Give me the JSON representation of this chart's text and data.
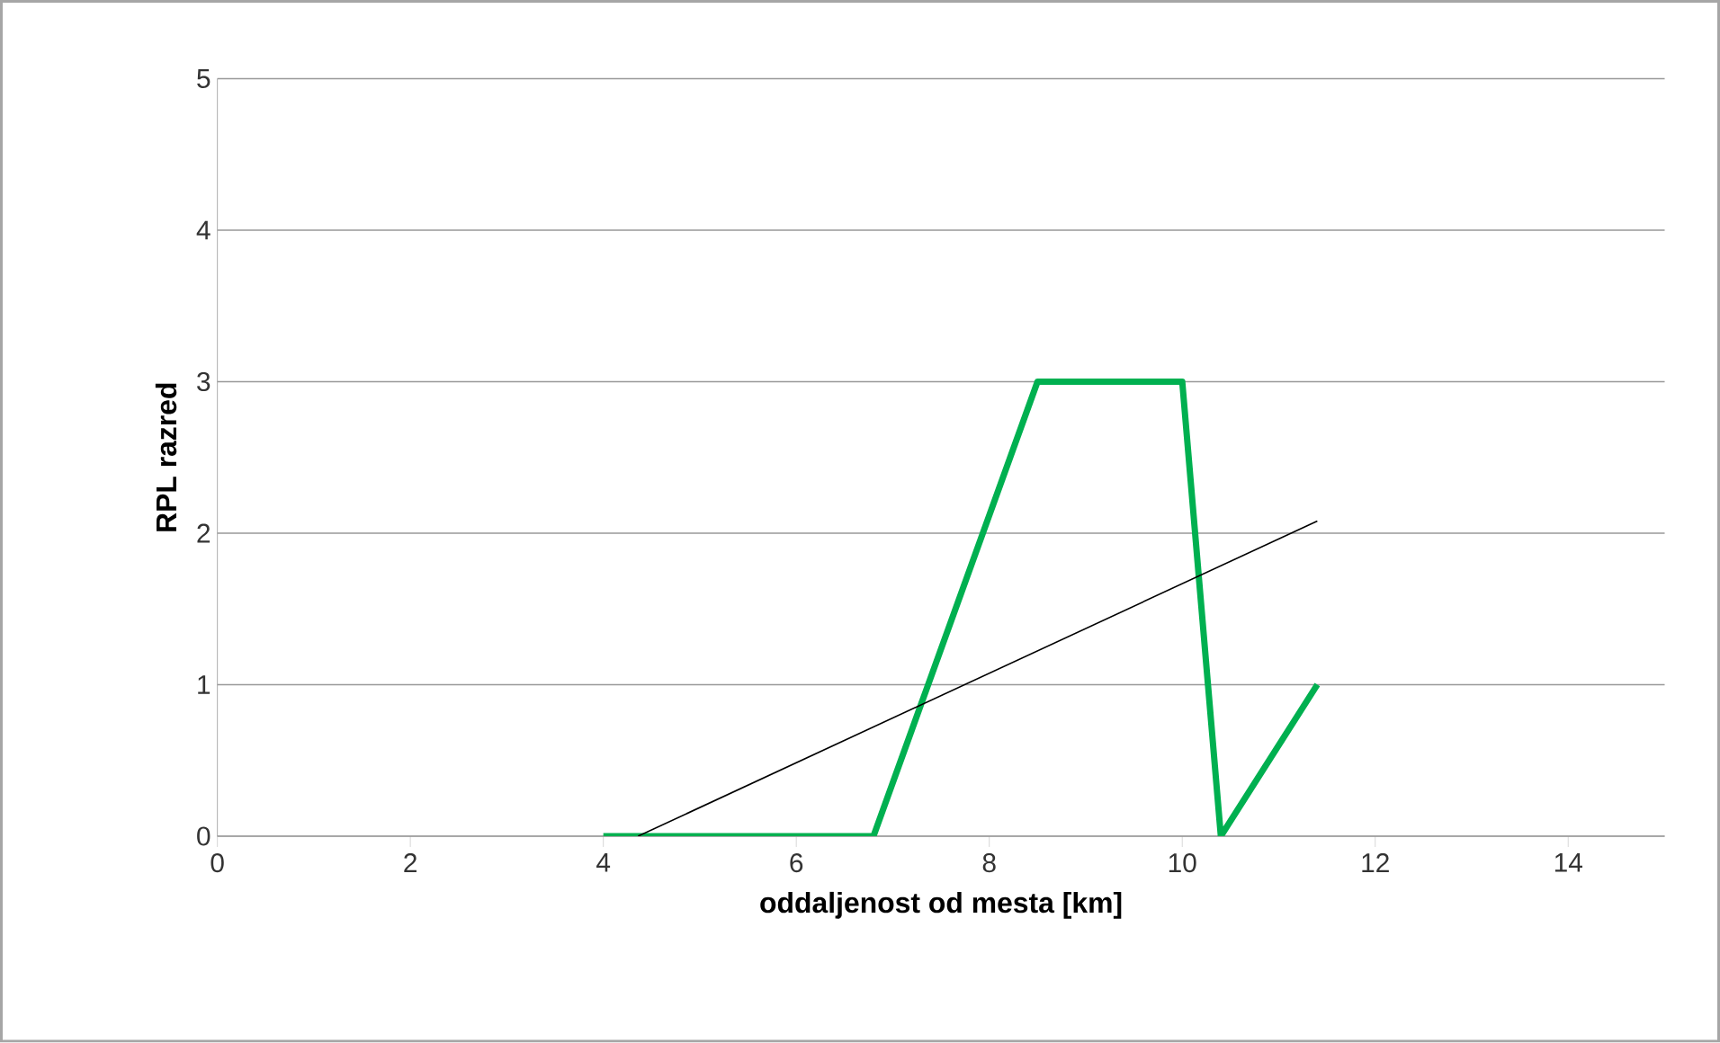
{
  "chart_data": {
    "type": "line",
    "xlabel": "oddaljenost od mesta [km]",
    "ylabel": "RPL razred",
    "xlim": [
      0,
      15
    ],
    "xticks": [
      0,
      2,
      4,
      6,
      8,
      10,
      12,
      14
    ],
    "ylim": [
      0,
      5
    ],
    "yticks": [
      0,
      1,
      2,
      3,
      4,
      5
    ],
    "grid": "y",
    "series": [
      {
        "color": "#00b050",
        "x": [
          4.0,
          6.8,
          8.5,
          10.0,
          10.4,
          11.4
        ],
        "values": [
          0,
          0,
          3,
          3,
          0,
          1
        ]
      },
      {
        "type": "line",
        "color": "#000000",
        "x": [
          4.36,
          11.4
        ],
        "values": [
          0,
          2.08
        ]
      }
    ]
  }
}
